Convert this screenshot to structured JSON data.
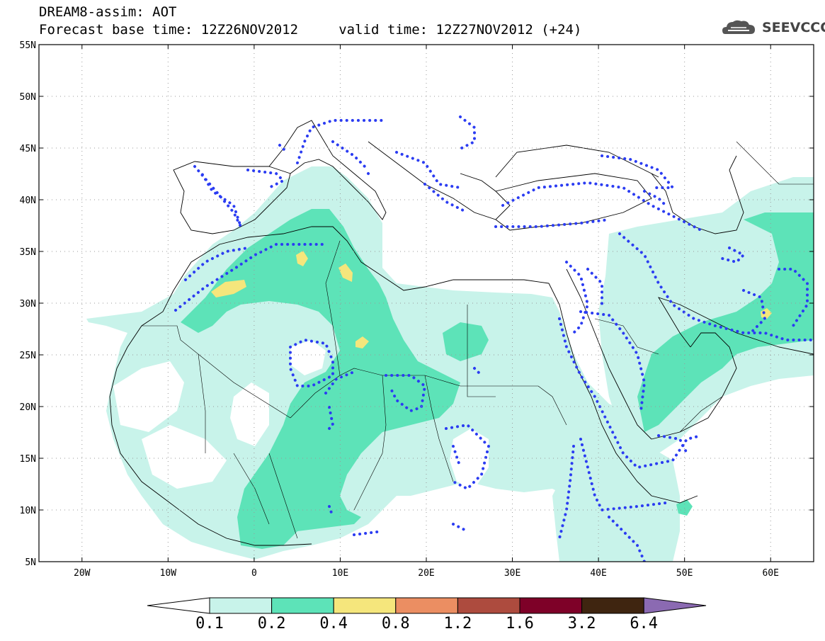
{
  "header": {
    "title_line1": "DREAM8-assim: AOT",
    "title_line2": "Forecast base time: 12Z26NOV2012     valid time: 12Z27NOV2012 (+24)"
  },
  "logo": {
    "text": "SEEVCCC",
    "icon": "cloud-logo-icon"
  },
  "map": {
    "lon_range": [
      -25,
      65
    ],
    "lat_range": [
      5,
      55
    ],
    "lat_labels": [
      "5N",
      "10N",
      "15N",
      "20N",
      "25N",
      "30N",
      "35N",
      "40N",
      "45N",
      "50N",
      "55N"
    ],
    "lon_labels": [
      "20W",
      "10W",
      "0",
      "10E",
      "20E",
      "30E",
      "40E",
      "50E",
      "60E"
    ],
    "gridlines": "dotted",
    "contour_color": "#2b3cf2"
  },
  "colorbar": {
    "labels": [
      "0.1",
      "0.2",
      "0.4",
      "0.8",
      "1.2",
      "1.6",
      "3.2",
      "6.4"
    ],
    "colors": [
      "#ffffff",
      "#c8f3ea",
      "#5de3b8",
      "#f5e67c",
      "#eb8e62",
      "#ad4b3e",
      "#7e0128",
      "#3f2510",
      "#8b6ab2"
    ]
  }
}
